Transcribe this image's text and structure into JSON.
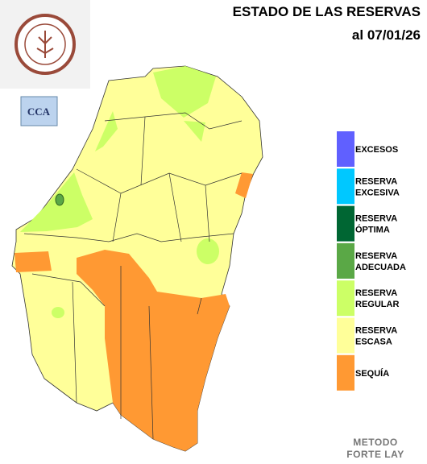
{
  "header": {
    "title": "ESTADO DE LAS RESERVAS",
    "date": "al 07/01/26"
  },
  "logo": {
    "badge": "CCA"
  },
  "legend": [
    {
      "lines": [
        "EXCESOS"
      ],
      "color": "#6060ff"
    },
    {
      "lines": [
        "RESERVA",
        "EXCESIVA"
      ],
      "color": "#00c8ff"
    },
    {
      "lines": [
        "RESERVA",
        "ÓPTIMA"
      ],
      "color": "#006633"
    },
    {
      "lines": [
        "RESERVA",
        "ADECUADA"
      ],
      "color": "#5aa846"
    },
    {
      "lines": [
        "RESERVA",
        "REGULAR"
      ],
      "color": "#ccff66"
    },
    {
      "lines": [
        "RESERVA",
        "ESCASA"
      ],
      "color": "#ffff99"
    },
    {
      "lines": [
        "SEQUÍA"
      ],
      "color": "#ff9933"
    }
  ],
  "footer": {
    "lines": [
      "METODO",
      "FORTE LAY"
    ]
  }
}
